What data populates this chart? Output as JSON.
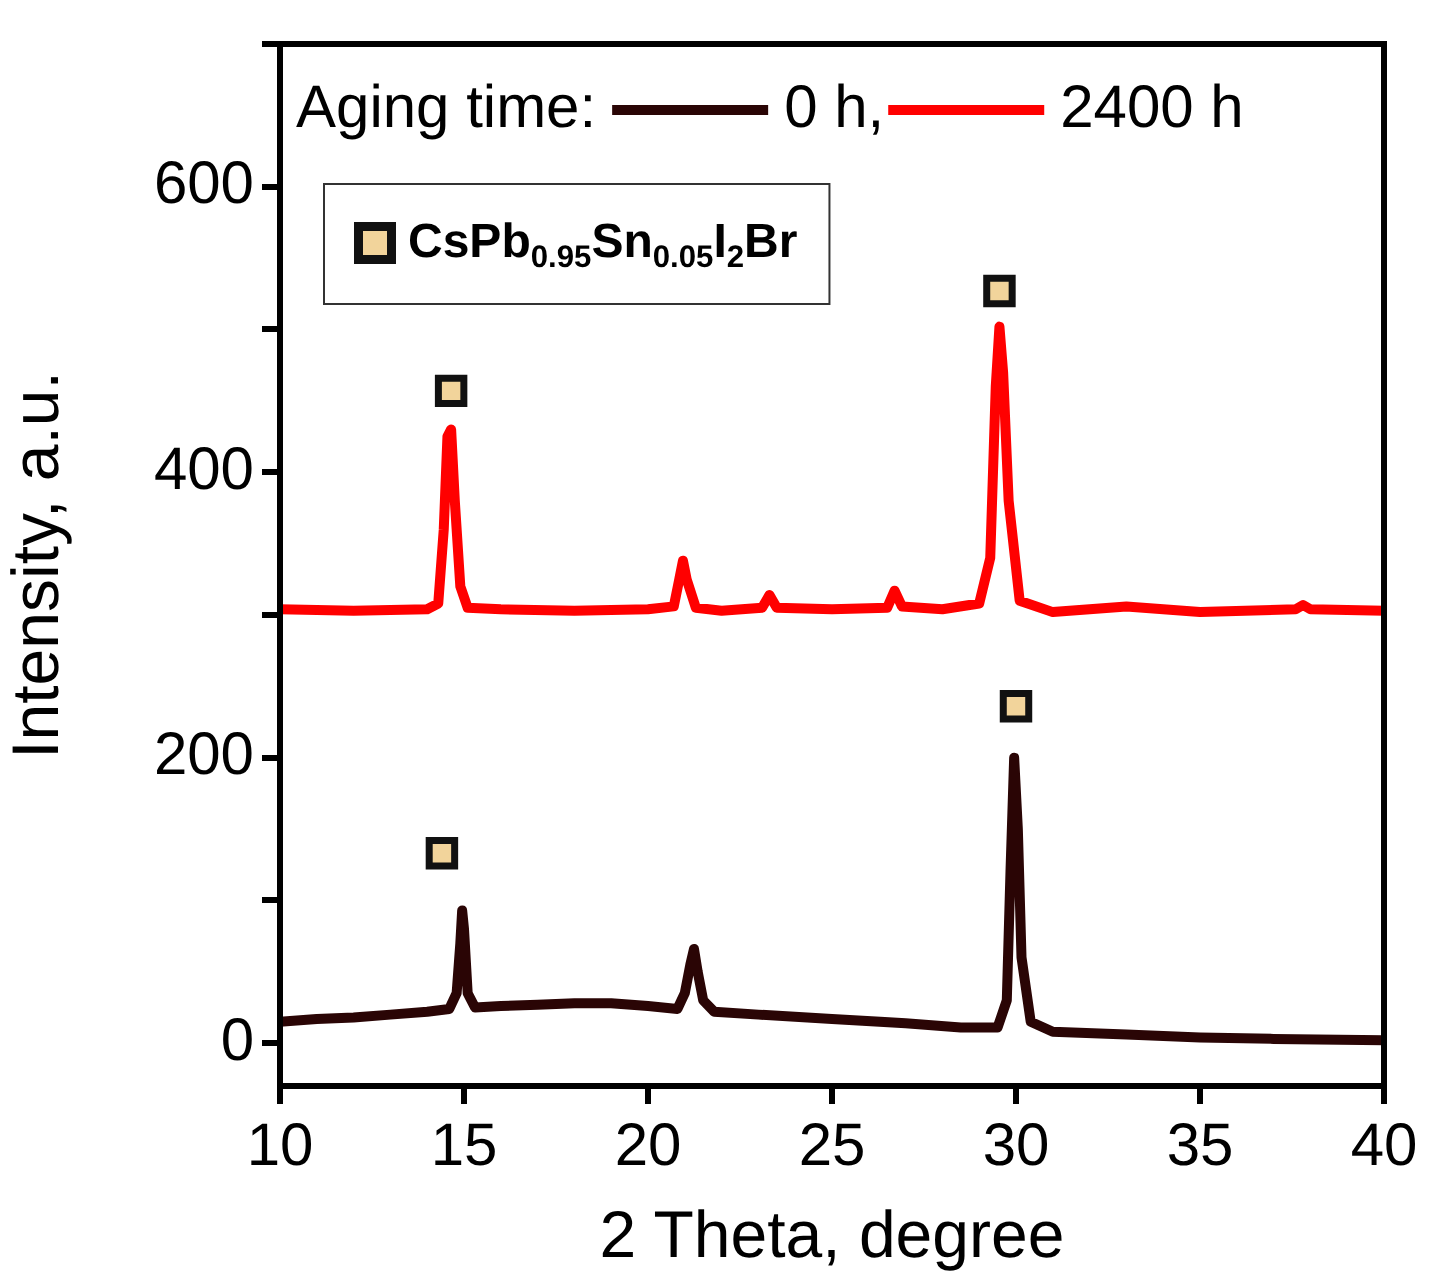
{
  "chart_data": {
    "type": "line",
    "xlabel": "2 Theta, degree",
    "ylabel": "Intensity, a.u.",
    "legend_title": "Aging time:",
    "xlim": [
      10,
      40
    ],
    "xticks": [
      10,
      15,
      20,
      25,
      30,
      35,
      40
    ],
    "ylim": [
      -30,
      700
    ],
    "yticks": [
      0,
      {
        "value": 100,
        "label": null
      },
      200,
      {
        "value": 300,
        "label": null
      },
      400,
      {
        "value": 500,
        "label": null
      },
      600,
      {
        "value": 700,
        "label": null
      }
    ],
    "grid": false,
    "legend": "top left",
    "line_style": "solid",
    "marker": "none",
    "series": [
      {
        "name": "0 h,",
        "color": "#2a0505",
        "x": [
          10,
          11,
          12,
          13,
          14,
          14.6,
          14.8,
          14.9,
          14.95,
          15.0,
          15.1,
          15.3,
          16,
          17,
          18,
          19,
          20,
          20.8,
          21.0,
          21.15,
          21.25,
          21.35,
          21.5,
          21.8,
          23,
          25,
          27,
          28.5,
          29.5,
          29.75,
          29.85,
          29.95,
          30.05,
          30.15,
          30.4,
          31,
          33,
          35,
          37,
          40
        ],
        "values": [
          15,
          17,
          18,
          20,
          22,
          24,
          35,
          70,
          93,
          80,
          35,
          25,
          26,
          27,
          28,
          28,
          26,
          24,
          35,
          55,
          66,
          50,
          30,
          22,
          20,
          17,
          14,
          11,
          11,
          30,
          120,
          200,
          150,
          60,
          15,
          8,
          6,
          4,
          3,
          2
        ]
      },
      {
        "name": "2400 h",
        "color": "#ff0000",
        "x": [
          10,
          12,
          14,
          14.3,
          14.45,
          14.55,
          14.65,
          14.75,
          14.9,
          15.1,
          16,
          18,
          20,
          20.7,
          20.85,
          20.95,
          21.05,
          21.3,
          22,
          23.1,
          23.3,
          23.5,
          25,
          26.5,
          26.7,
          26.9,
          28,
          29.0,
          29.3,
          29.45,
          29.55,
          29.65,
          29.8,
          30.1,
          31,
          33,
          35,
          37.6,
          37.8,
          38.0,
          40
        ],
        "values": [
          304,
          303,
          304,
          308,
          360,
          425,
          430,
          380,
          320,
          305,
          304,
          303,
          304,
          306,
          325,
          338,
          325,
          305,
          303,
          305,
          314,
          305,
          304,
          305,
          317,
          306,
          304,
          308,
          340,
          460,
          502,
          470,
          380,
          310,
          302,
          306,
          302,
          304,
          307,
          304,
          303
        ]
      },
      {
        "name": "CsPb$_{0.95}$Sn$_{0.05}$I$_{2}$Br",
        "type": "scatter",
        "marker": "square",
        "color": "#f2d49b",
        "x": [
          14.65,
          29.55,
          14.4,
          30.0
        ],
        "values": [
          457,
          527,
          133,
          236
        ]
      }
    ]
  }
}
